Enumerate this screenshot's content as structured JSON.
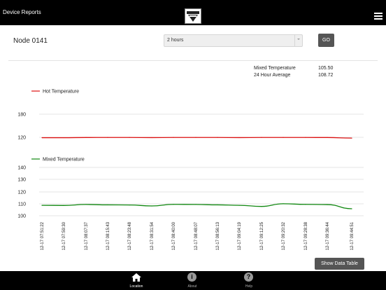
{
  "header": {
    "title": "Device Reports",
    "logo_icon": "brand-logo-icon",
    "menu_icon": "hamburger-menu-icon"
  },
  "node": {
    "name": "Node 0141"
  },
  "controls": {
    "range_value": "2 hours",
    "go_label": "GO"
  },
  "stats": [
    {
      "label": "Mixed Temperature",
      "value": "105.50"
    },
    {
      "label": "24 Hour Average",
      "value": "108.72"
    }
  ],
  "buttons": {
    "show_table": "Show Data Table"
  },
  "tabs": [
    {
      "label": "Location",
      "icon": "home-icon",
      "active": true
    },
    {
      "label": "About",
      "icon": "info-icon",
      "active": false
    },
    {
      "label": "Help",
      "icon": "help-icon",
      "active": false
    }
  ],
  "colors": {
    "hot": "#dd1111",
    "mixed": "#118811",
    "button": "#555555"
  },
  "chart_data": [
    {
      "type": "line",
      "series": [
        {
          "name": "Hot Temperature",
          "color": "#dd1111",
          "values": [
            119.0,
            119.0,
            119.4,
            119.6,
            119.5,
            119.2,
            119.5,
            119.6,
            119.5,
            119.2,
            119.5,
            119.6,
            119.5,
            119.4,
            118.0
          ]
        }
      ],
      "y_ticks": [
        120,
        180
      ],
      "x": [
        "12-17 07:51:22",
        "12-17 07:59:30",
        "12-17 08:07:37",
        "12-17 08:15:43",
        "12-17 08:23:48",
        "12-17 08:31:54",
        "12-17 08:40:00",
        "12-17 08:48:07",
        "12-17 08:56:13",
        "12-17 09:04:19",
        "12-17 09:12:25",
        "12-17 09:20:32",
        "12-17 09:28:38",
        "12-17 09:36:44",
        "12-17 09:44:51"
      ],
      "grid": true,
      "legend": "top-left"
    },
    {
      "type": "line",
      "series": [
        {
          "name": "Mixed Temperature",
          "color": "#118811",
          "values": [
            108.6,
            108.5,
            109.3,
            109.0,
            108.9,
            108.1,
            109.4,
            109.3,
            109.0,
            108.6,
            107.7,
            109.9,
            109.4,
            109.2,
            105.8
          ]
        }
      ],
      "y_ticks": [
        100,
        110,
        120,
        130,
        140
      ],
      "x": [
        "12-17 07:51:22",
        "12-17 07:59:30",
        "12-17 08:07:37",
        "12-17 08:15:43",
        "12-17 08:23:48",
        "12-17 08:31:54",
        "12-17 08:40:00",
        "12-17 08:48:07",
        "12-17 08:56:13",
        "12-17 09:04:19",
        "12-17 09:12:25",
        "12-17 09:20:32",
        "12-17 09:28:38",
        "12-17 09:36:44",
        "12-17 09:44:51"
      ],
      "grid": true,
      "legend": "top-left"
    }
  ]
}
